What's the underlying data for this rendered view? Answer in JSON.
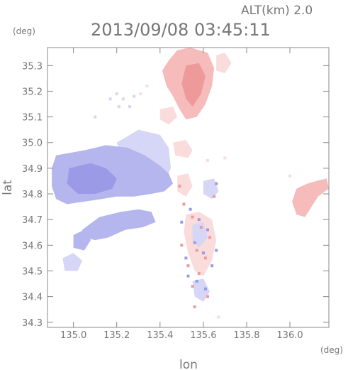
{
  "chart_data": {
    "type": "heatmap",
    "title": "2013/09/08 03:45:11",
    "altitude_label": "ALT(km) 2.0",
    "xlabel": "lon",
    "ylabel": "lat",
    "x_unit": "(deg)",
    "y_unit": "(deg)",
    "xlim": [
      134.88,
      136.18
    ],
    "ylim": [
      34.28,
      35.37
    ],
    "x_ticks": [
      "135.0",
      "135.2",
      "135.4",
      "135.6",
      "135.8",
      "136.0"
    ],
    "y_ticks": [
      "34.3",
      "34.4",
      "34.5",
      "34.6",
      "34.7",
      "34.8",
      "34.9",
      "35.0",
      "35.1",
      "35.2",
      "35.3"
    ],
    "grid": false,
    "legend": "none",
    "colors": {
      "blue_strong": "#9a9ae6",
      "blue_mid": "#b6b6ee",
      "blue_light": "#d6d6f6",
      "red_strong": "#ef9a9a",
      "red_mid": "#f6bcbc",
      "red_light": "#fadcdc",
      "frame": "#888888"
    },
    "regions": [
      {
        "name": "northern-echo",
        "color": "red_mid",
        "points": [
          [
            135.48,
            35.36
          ],
          [
            135.54,
            35.37
          ],
          [
            135.62,
            35.35
          ],
          [
            135.65,
            35.29
          ],
          [
            135.64,
            35.22
          ],
          [
            135.61,
            35.15
          ],
          [
            135.57,
            35.1
          ],
          [
            135.52,
            35.09
          ],
          [
            135.49,
            35.13
          ],
          [
            135.46,
            35.18
          ],
          [
            135.43,
            35.22
          ],
          [
            135.41,
            35.28
          ],
          [
            135.44,
            35.32
          ]
        ]
      },
      {
        "name": "northern-echo-core",
        "color": "red_strong",
        "points": [
          [
            135.52,
            35.3
          ],
          [
            135.58,
            35.31
          ],
          [
            135.61,
            35.26
          ],
          [
            135.59,
            35.19
          ],
          [
            135.55,
            35.14
          ],
          [
            135.52,
            35.17
          ],
          [
            135.5,
            35.23
          ]
        ]
      },
      {
        "name": "northern-echo-tail",
        "color": "red_light",
        "points": [
          [
            135.4,
            35.13
          ],
          [
            135.46,
            35.14
          ],
          [
            135.48,
            35.1
          ],
          [
            135.44,
            35.07
          ],
          [
            135.4,
            35.09
          ]
        ]
      },
      {
        "name": "northeast-fringe",
        "color": "red_light",
        "points": [
          [
            135.66,
            35.34
          ],
          [
            135.7,
            35.35
          ],
          [
            135.73,
            35.31
          ],
          [
            135.7,
            35.27
          ],
          [
            135.66,
            35.28
          ]
        ]
      },
      {
        "name": "central-echo-light",
        "color": "blue_light",
        "points": [
          [
            135.2,
            35.0
          ],
          [
            135.3,
            35.05
          ],
          [
            135.4,
            35.03
          ],
          [
            135.44,
            34.98
          ],
          [
            135.45,
            34.9
          ],
          [
            135.42,
            34.85
          ],
          [
            135.35,
            34.87
          ],
          [
            135.28,
            34.93
          ],
          [
            135.22,
            34.96
          ]
        ]
      },
      {
        "name": "central-echo",
        "color": "blue_mid",
        "points": [
          [
            134.92,
            34.95
          ],
          [
            135.05,
            34.97
          ],
          [
            135.15,
            34.99
          ],
          [
            135.25,
            34.98
          ],
          [
            135.33,
            34.95
          ],
          [
            135.4,
            34.91
          ],
          [
            135.44,
            34.88
          ],
          [
            135.46,
            34.84
          ],
          [
            135.42,
            34.81
          ],
          [
            135.36,
            34.8
          ],
          [
            135.28,
            34.79
          ],
          [
            135.2,
            34.79
          ],
          [
            135.13,
            34.78
          ],
          [
            135.05,
            34.77
          ],
          [
            134.97,
            34.76
          ],
          [
            134.92,
            34.78
          ],
          [
            134.9,
            34.83
          ],
          [
            134.9,
            34.9
          ]
        ]
      },
      {
        "name": "central-echo-core",
        "color": "blue_strong",
        "points": [
          [
            134.98,
            34.9
          ],
          [
            135.08,
            34.92
          ],
          [
            135.15,
            34.9
          ],
          [
            135.2,
            34.86
          ],
          [
            135.18,
            34.82
          ],
          [
            135.1,
            34.8
          ],
          [
            135.02,
            34.8
          ],
          [
            134.97,
            34.84
          ]
        ]
      },
      {
        "name": "central-echo-eastern-edge",
        "color": "red_light",
        "points": [
          [
            135.46,
            35.0
          ],
          [
            135.52,
            35.01
          ],
          [
            135.55,
            34.97
          ],
          [
            135.53,
            34.94
          ],
          [
            135.47,
            34.95
          ]
        ]
      },
      {
        "name": "southwest-band",
        "color": "blue_mid",
        "points": [
          [
            135.04,
            34.66
          ],
          [
            135.12,
            34.71
          ],
          [
            135.22,
            34.73
          ],
          [
            135.3,
            34.74
          ],
          [
            135.36,
            34.73
          ],
          [
            135.38,
            34.69
          ],
          [
            135.32,
            34.67
          ],
          [
            135.24,
            34.66
          ],
          [
            135.16,
            34.63
          ],
          [
            135.1,
            34.62
          ],
          [
            135.05,
            34.63
          ]
        ]
      },
      {
        "name": "southwest-patch",
        "color": "blue_light",
        "points": [
          [
            134.95,
            34.55
          ],
          [
            135.0,
            34.57
          ],
          [
            135.04,
            34.54
          ],
          [
            135.02,
            34.5
          ],
          [
            134.96,
            34.5
          ]
        ]
      },
      {
        "name": "southwest-blob",
        "color": "blue_mid",
        "points": [
          [
            135.0,
            34.64
          ],
          [
            135.05,
            34.66
          ],
          [
            135.08,
            34.62
          ],
          [
            135.05,
            34.58
          ],
          [
            135.0,
            34.59
          ]
        ]
      },
      {
        "name": "south-scatter",
        "color": "red_light",
        "points": [
          [
            135.52,
            34.72
          ],
          [
            135.58,
            34.73
          ],
          [
            135.64,
            34.7
          ],
          [
            135.66,
            34.62
          ],
          [
            135.64,
            34.54
          ],
          [
            135.6,
            34.48
          ],
          [
            135.56,
            34.5
          ],
          [
            135.53,
            34.57
          ],
          [
            135.51,
            34.65
          ]
        ]
      },
      {
        "name": "south-scatter-blue",
        "color": "blue_light",
        "points": [
          [
            135.55,
            34.68
          ],
          [
            135.6,
            34.69
          ],
          [
            135.62,
            34.63
          ],
          [
            135.58,
            34.59
          ],
          [
            135.55,
            34.62
          ]
        ]
      },
      {
        "name": "south-scatter-lower",
        "color": "blue_light",
        "points": [
          [
            135.55,
            34.46
          ],
          [
            135.6,
            34.47
          ],
          [
            135.63,
            34.42
          ],
          [
            135.6,
            34.38
          ],
          [
            135.56,
            34.4
          ]
        ]
      },
      {
        "name": "mid-cluster",
        "color": "red_light",
        "points": [
          [
            135.48,
            34.87
          ],
          [
            135.53,
            34.88
          ],
          [
            135.55,
            34.83
          ],
          [
            135.52,
            34.79
          ],
          [
            135.48,
            34.81
          ]
        ]
      },
      {
        "name": "mid-cluster-east",
        "color": "blue_light",
        "points": [
          [
            135.6,
            34.85
          ],
          [
            135.65,
            34.86
          ],
          [
            135.67,
            34.81
          ],
          [
            135.64,
            34.78
          ],
          [
            135.6,
            34.8
          ]
        ]
      },
      {
        "name": "east-echo",
        "color": "red_mid",
        "points": [
          [
            136.03,
            34.82
          ],
          [
            136.08,
            34.84
          ],
          [
            136.12,
            34.85
          ],
          [
            136.17,
            34.86
          ],
          [
            136.18,
            34.82
          ],
          [
            136.13,
            34.79
          ],
          [
            136.1,
            34.75
          ],
          [
            136.07,
            34.71
          ],
          [
            136.03,
            34.72
          ],
          [
            136.01,
            34.77
          ]
        ]
      }
    ],
    "speckles": [
      {
        "color": "red_strong",
        "points": [
          [
            135.51,
            34.76
          ],
          [
            135.55,
            34.71
          ],
          [
            135.59,
            34.67
          ],
          [
            135.63,
            34.63
          ],
          [
            135.57,
            34.58
          ],
          [
            135.61,
            34.55
          ],
          [
            135.53,
            34.52
          ],
          [
            135.58,
            34.49
          ],
          [
            135.55,
            34.44
          ],
          [
            135.62,
            34.4
          ],
          [
            135.5,
            34.6
          ],
          [
            135.65,
            34.79
          ],
          [
            135.49,
            34.83
          ],
          [
            135.56,
            34.36
          ]
        ]
      },
      {
        "color": "blue_strong",
        "points": [
          [
            135.54,
            34.74
          ],
          [
            135.58,
            34.7
          ],
          [
            135.62,
            34.66
          ],
          [
            135.56,
            34.61
          ],
          [
            135.6,
            34.57
          ],
          [
            135.52,
            34.55
          ],
          [
            135.64,
            34.52
          ],
          [
            135.57,
            34.46
          ],
          [
            135.61,
            34.43
          ],
          [
            135.53,
            34.48
          ],
          [
            135.66,
            34.84
          ],
          [
            135.5,
            34.69
          ],
          [
            135.66,
            34.58
          ]
        ]
      },
      {
        "color": "blue_light",
        "points": [
          [
            135.17,
            35.17
          ],
          [
            135.2,
            35.19
          ],
          [
            135.23,
            35.17
          ],
          [
            135.26,
            35.14
          ],
          [
            135.21,
            35.14
          ],
          [
            135.28,
            35.18
          ],
          [
            135.1,
            35.1
          ]
        ]
      },
      {
        "color": "red_light",
        "points": [
          [
            135.31,
            35.19
          ],
          [
            135.34,
            35.22
          ],
          [
            135.7,
            34.94
          ],
          [
            135.62,
            34.93
          ],
          [
            136.0,
            34.87
          ],
          [
            135.67,
            34.32
          ]
        ]
      }
    ]
  }
}
